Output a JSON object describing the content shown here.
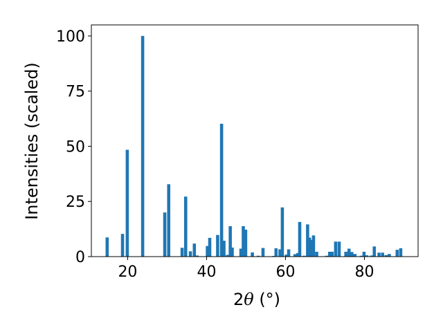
{
  "chart_data": {
    "type": "bar",
    "xlabel_prefix": "2",
    "xlabel_symbol": "θ",
    "xlabel_suffix": " (°)",
    "ylabel": "Intensities (scaled)",
    "xlim": [
      10.8,
      93.6
    ],
    "ylim": [
      0,
      105
    ],
    "xticks": [
      20,
      40,
      60,
      80
    ],
    "yticks": [
      0,
      25,
      50,
      75,
      100
    ],
    "bar_width": 0.8,
    "grid": false,
    "color": "#1f77b4",
    "x": [
      14.8,
      18.7,
      19.9,
      23.8,
      29.4,
      30.4,
      33.8,
      34.7,
      35.9,
      36.9,
      37.6,
      40.2,
      40.8,
      42.8,
      43.8,
      44.4,
      45.3,
      46.0,
      46.5,
      48.7,
      49.3,
      49.9,
      51.6,
      53.1,
      54.3,
      57.0,
      57.6,
      58.6,
      59.2,
      60.2,
      60.8,
      62.4,
      63.1,
      63.6,
      64.7,
      65.6,
      66.1,
      66.7,
      67.1,
      67.9,
      70.4,
      71.2,
      71.8,
      72.7,
      73.6,
      75.3,
      76.1,
      76.8,
      77.6,
      79.2,
      79.9,
      80.6,
      81.8,
      82.5,
      83.7,
      84.6,
      85.5,
      86.3,
      88.3,
      89.2
    ],
    "values": [
      8.7,
      10.3,
      48.4,
      100,
      20.0,
      32.8,
      4.0,
      27.2,
      2.4,
      5.9,
      0.5,
      4.8,
      8.5,
      9.8,
      60.2,
      7.2,
      0.8,
      13.8,
      4.1,
      3.6,
      13.8,
      12.2,
      1.9,
      0.4,
      3.9,
      0.3,
      3.8,
      3.3,
      22.3,
      0.9,
      3.3,
      1.1,
      1.6,
      15.7,
      0.4,
      14.6,
      8.6,
      7.5,
      9.6,
      2.2,
      0.4,
      2.2,
      2.2,
      6.8,
      6.8,
      2.2,
      3.6,
      2.1,
      1.2,
      0.4,
      2.2,
      0.6,
      0.5,
      4.6,
      1.8,
      1.8,
      0.7,
      1.2,
      3.1,
      3.8
    ]
  }
}
